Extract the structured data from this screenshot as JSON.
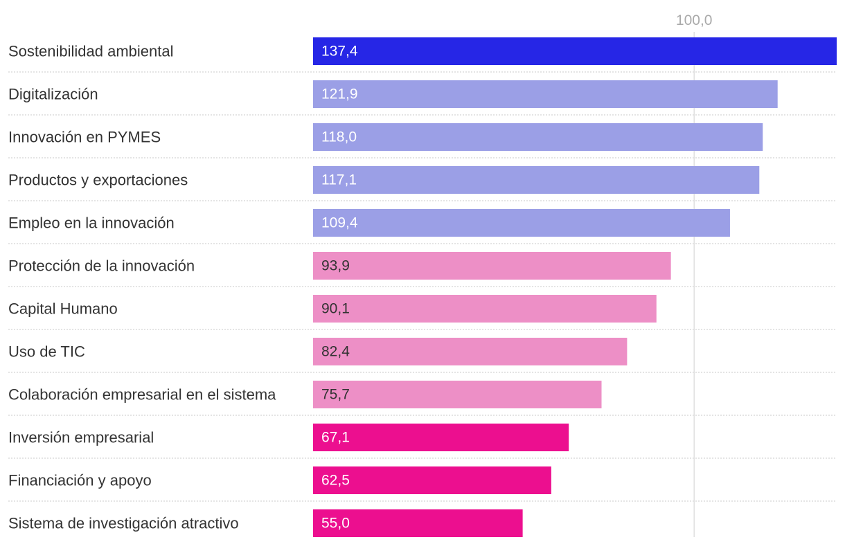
{
  "chart_data": {
    "type": "bar",
    "orientation": "horizontal",
    "title": "",
    "xlabel": "",
    "ylabel": "",
    "xlim": [
      0,
      137.4
    ],
    "grid": false,
    "legend": "none",
    "reference_line": {
      "value": 100.0,
      "label": "100,0"
    },
    "categories": [
      "Sostenibilidad ambiental",
      "Digitalización",
      "Innovación en PYMES",
      "Productos y exportaciones",
      "Empleo en la innovación",
      "Protección de la innovación",
      "Capital Humano",
      "Uso de TIC",
      "Colaboración empresarial en el sistema",
      "Inversión empresarial",
      "Financiación y apoyo",
      "Sistema de investigación atractivo"
    ],
    "values": [
      137.4,
      121.9,
      118.0,
      117.1,
      109.4,
      93.9,
      90.1,
      82.4,
      75.7,
      67.1,
      62.5,
      55.0
    ],
    "value_labels": [
      "137,4",
      "121,9",
      "118,0",
      "117,1",
      "109,4",
      "93,9",
      "90,1",
      "82,4",
      "75,7",
      "67,1",
      "62,5",
      "55,0"
    ],
    "bar_colors": [
      "#2626e6",
      "#9b9fe6",
      "#9b9fe6",
      "#9b9fe6",
      "#9b9fe6",
      "#ed8fc6",
      "#ed8fc6",
      "#ed8fc6",
      "#ed8fc6",
      "#ec0f8f",
      "#ec0f8f",
      "#ec0f8f"
    ],
    "label_colors": [
      "#ffffff",
      "#ffffff",
      "#ffffff",
      "#ffffff",
      "#ffffff",
      "#333333",
      "#333333",
      "#333333",
      "#333333",
      "#ffffff",
      "#ffffff",
      "#ffffff"
    ]
  }
}
